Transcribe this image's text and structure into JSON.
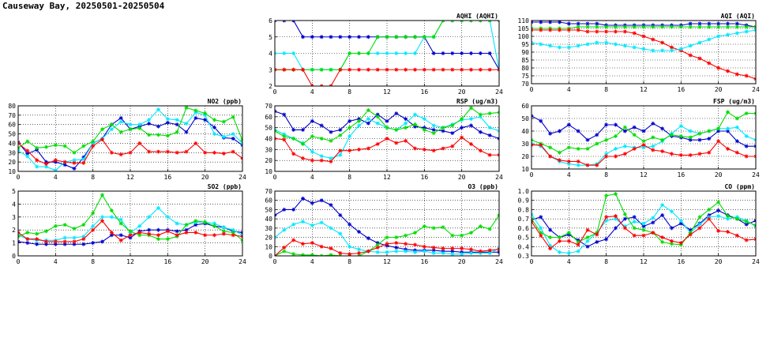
{
  "page": {
    "title": "Causeway Bay, 20250501-20250504"
  },
  "colors": {
    "red": "#ff0000",
    "green": "#00dd00",
    "blue": "#0000cc",
    "cyan": "#00e8ff",
    "grid": "#000000"
  },
  "chart_data": [
    {
      "id": "aqhi",
      "type": "line",
      "title": "AQHI (AQHI)",
      "xlim": [
        0,
        24
      ],
      "xticks": [
        "0",
        "4",
        "8",
        "12",
        "16",
        "20",
        "24"
      ],
      "ylim": [
        2,
        6
      ],
      "yticks": [
        "2",
        "3",
        "4",
        "5",
        "6"
      ],
      "series": [
        {
          "color": "blue",
          "values": [
            6,
            6,
            6,
            5,
            5,
            5,
            5,
            5,
            5,
            5,
            5,
            5,
            5,
            5,
            5,
            5,
            5,
            4,
            4,
            4,
            4,
            4,
            4,
            4,
            3
          ]
        },
        {
          "color": "cyan",
          "values": [
            4,
            4,
            4,
            3,
            3,
            3,
            3,
            3,
            4,
            4,
            4,
            4,
            4,
            4,
            4,
            4,
            5,
            5,
            6,
            6,
            6,
            6,
            6,
            6,
            3
          ]
        },
        {
          "color": "green",
          "values": [
            3,
            3,
            3,
            3,
            3,
            3,
            3,
            3,
            4,
            4,
            4,
            5,
            5,
            5,
            5,
            5,
            5,
            5,
            6,
            6,
            6,
            6,
            6,
            6,
            6
          ]
        },
        {
          "color": "red",
          "values": [
            3,
            3,
            3,
            3,
            2,
            2,
            2,
            3,
            3,
            3,
            3,
            3,
            3,
            3,
            3,
            3,
            3,
            3,
            3,
            3,
            3,
            3,
            3,
            3,
            3
          ]
        }
      ]
    },
    {
      "id": "aqi",
      "type": "line",
      "title": "AQI (AQI)",
      "xlim": [
        0,
        24
      ],
      "xticks": [
        "0",
        "4",
        "8",
        "12",
        "16",
        "20",
        "24"
      ],
      "ylim": [
        70,
        110
      ],
      "yticks": [
        "70",
        "75",
        "80",
        "85",
        "90",
        "95",
        "100",
        "105",
        "110"
      ],
      "series": [
        {
          "color": "blue",
          "values": [
            109,
            109,
            109,
            109,
            108,
            108,
            108,
            108,
            107,
            107,
            107,
            107,
            107,
            107,
            107,
            107,
            107,
            108,
            108,
            108,
            108,
            108,
            108,
            107,
            106
          ]
        },
        {
          "color": "green",
          "values": [
            105,
            105,
            105,
            105,
            105,
            106,
            106,
            106,
            106,
            106,
            106,
            106,
            106,
            106,
            106,
            106,
            106,
            106,
            106,
            106,
            106,
            106,
            106,
            106,
            106
          ]
        },
        {
          "color": "red",
          "values": [
            104,
            104,
            104,
            104,
            104,
            104,
            103,
            103,
            103,
            103,
            103,
            102,
            100,
            98,
            96,
            93,
            91,
            88,
            86,
            83,
            80,
            78,
            76,
            75,
            73
          ]
        },
        {
          "color": "cyan",
          "values": [
            96,
            95,
            94,
            93,
            93,
            94,
            95,
            96,
            96,
            95,
            94,
            93,
            92,
            91,
            91,
            91,
            92,
            94,
            96,
            98,
            100,
            101,
            102,
            103,
            104
          ]
        }
      ]
    },
    {
      "id": "no2",
      "type": "line",
      "title": "NO2 (ppb)",
      "xlim": [
        0,
        24
      ],
      "xticks": [
        "0",
        "4",
        "8",
        "12",
        "16",
        "20",
        "24"
      ],
      "ylim": [
        10,
        80
      ],
      "yticks": [
        "10",
        "20",
        "30",
        "40",
        "50",
        "60",
        "70",
        "80"
      ],
      "series": [
        {
          "color": "blue",
          "values": [
            41,
            29,
            33,
            20,
            20,
            17,
            13,
            25,
            40,
            45,
            60,
            67,
            55,
            58,
            61,
            58,
            62,
            60,
            52,
            67,
            65,
            57,
            46,
            45,
            38
          ]
        },
        {
          "color": "cyan",
          "values": [
            32,
            26,
            15,
            15,
            11,
            20,
            22,
            23,
            40,
            45,
            55,
            63,
            60,
            60,
            65,
            76,
            66,
            65,
            61,
            73,
            70,
            50,
            47,
            50,
            40
          ]
        },
        {
          "color": "green",
          "values": [
            35,
            42,
            35,
            36,
            38,
            37,
            30,
            37,
            42,
            55,
            60,
            52,
            55,
            56,
            49,
            49,
            48,
            52,
            78,
            75,
            72,
            65,
            63,
            68,
            43
          ]
        },
        {
          "color": "red",
          "values": [
            40,
            32,
            22,
            18,
            22,
            20,
            19,
            19,
            37,
            44,
            30,
            28,
            30,
            40,
            31,
            31,
            31,
            30,
            31,
            40,
            30,
            30,
            29,
            31,
            24
          ]
        }
      ]
    },
    {
      "id": "rsp",
      "type": "line",
      "title": "RSP (ug/m3)",
      "xlim": [
        0,
        24
      ],
      "xticks": [
        "0",
        "4",
        "8",
        "12",
        "16",
        "20",
        "24"
      ],
      "ylim": [
        10,
        70
      ],
      "yticks": [
        "10",
        "20",
        "30",
        "40",
        "50",
        "60",
        "70"
      ],
      "series": [
        {
          "color": "blue",
          "values": [
            65,
            62,
            48,
            48,
            56,
            52,
            46,
            48,
            56,
            58,
            54,
            62,
            56,
            63,
            58,
            51,
            50,
            48,
            47,
            45,
            50,
            52,
            46,
            43,
            40
          ]
        },
        {
          "color": "cyan",
          "values": [
            48,
            44,
            40,
            36,
            28,
            24,
            22,
            25,
            42,
            52,
            58,
            54,
            50,
            48,
            54,
            62,
            58,
            52,
            50,
            53,
            57,
            58,
            60,
            50,
            47
          ]
        },
        {
          "color": "green",
          "values": [
            47,
            42,
            40,
            35,
            42,
            40,
            38,
            43,
            50,
            56,
            66,
            60,
            50,
            48,
            50,
            53,
            48,
            45,
            50,
            52,
            58,
            68,
            62,
            63,
            64
          ]
        },
        {
          "color": "red",
          "values": [
            40,
            39,
            26,
            22,
            20,
            20,
            19,
            29,
            29,
            30,
            31,
            35,
            40,
            36,
            38,
            31,
            30,
            29,
            31,
            33,
            41,
            35,
            29,
            25,
            25
          ]
        }
      ]
    },
    {
      "id": "fsp",
      "type": "line",
      "title": "FSP (ug/m3)",
      "xlim": [
        0,
        24
      ],
      "xticks": [
        "0",
        "4",
        "8",
        "12",
        "16",
        "20",
        "24"
      ],
      "ylim": [
        10,
        60
      ],
      "yticks": [
        "10",
        "20",
        "30",
        "40",
        "50",
        "60"
      ],
      "series": [
        {
          "color": "blue",
          "values": [
            52,
            48,
            38,
            40,
            45,
            40,
            33,
            37,
            45,
            45,
            40,
            43,
            40,
            46,
            42,
            36,
            35,
            33,
            33,
            34,
            40,
            40,
            32,
            28,
            28
          ]
        },
        {
          "color": "cyan",
          "values": [
            30,
            28,
            20,
            16,
            14,
            13,
            13,
            14,
            22,
            26,
            28,
            27,
            27,
            28,
            32,
            38,
            44,
            40,
            38,
            40,
            42,
            42,
            43,
            36,
            33
          ]
        },
        {
          "color": "green",
          "values": [
            33,
            30,
            27,
            23,
            27,
            26,
            26,
            30,
            33,
            36,
            43,
            37,
            32,
            35,
            33,
            37,
            36,
            35,
            38,
            40,
            42,
            55,
            50,
            54,
            54
          ]
        },
        {
          "color": "red",
          "values": [
            29,
            29,
            20,
            17,
            16,
            16,
            13,
            13,
            20,
            20,
            22,
            26,
            29,
            25,
            24,
            22,
            21,
            21,
            22,
            23,
            32,
            26,
            23,
            20,
            20
          ]
        }
      ]
    },
    {
      "id": "so2",
      "type": "line",
      "title": "SO2 (ppb)",
      "xlim": [
        0,
        24
      ],
      "xticks": [
        "0",
        "4",
        "8",
        "12",
        "16",
        "20",
        "24"
      ],
      "ylim": [
        0,
        5
      ],
      "yticks": [
        "0",
        "1",
        "2",
        "3",
        "4",
        "5"
      ],
      "series": [
        {
          "color": "blue",
          "values": [
            1.1,
            1.0,
            0.9,
            0.9,
            0.9,
            0.9,
            0.9,
            0.9,
            1.0,
            1.1,
            1.6,
            1.6,
            1.4,
            1.9,
            2.0,
            2.0,
            2.0,
            1.9,
            2.0,
            2.4,
            2.5,
            2.3,
            2.2,
            1.9,
            1.8
          ]
        },
        {
          "color": "cyan",
          "values": [
            1.6,
            1.3,
            1.2,
            1.2,
            1.2,
            1.4,
            1.4,
            1.5,
            2.3,
            3.0,
            3.0,
            2.8,
            1.8,
            2.3,
            3.0,
            3.7,
            3.0,
            2.5,
            2.4,
            2.6,
            2.6,
            2.5,
            2.2,
            2.0,
            1.6
          ]
        },
        {
          "color": "green",
          "values": [
            1.5,
            1.8,
            1.7,
            1.9,
            2.3,
            2.4,
            2.1,
            2.4,
            3.3,
            4.7,
            3.5,
            2.5,
            1.9,
            1.6,
            1.6,
            1.3,
            1.3,
            1.5,
            2.4,
            2.7,
            2.6,
            2.3,
            1.9,
            1.8,
            1.2
          ]
        },
        {
          "color": "red",
          "values": [
            1.8,
            1.3,
            1.3,
            1.1,
            1.1,
            1.1,
            1.1,
            1.3,
            2.0,
            2.7,
            1.8,
            1.2,
            1.6,
            1.8,
            1.7,
            1.6,
            1.9,
            1.6,
            1.8,
            1.8,
            1.6,
            1.6,
            1.7,
            1.6,
            1.5
          ]
        }
      ]
    },
    {
      "id": "o3",
      "type": "line",
      "title": "O3 (ppb)",
      "xlim": [
        0,
        24
      ],
      "xticks": [
        "0",
        "4",
        "8",
        "12",
        "16",
        "20",
        "24"
      ],
      "ylim": [
        0,
        70
      ],
      "yticks": [
        "0",
        "10",
        "20",
        "30",
        "40",
        "50",
        "60",
        "70"
      ],
      "series": [
        {
          "color": "blue",
          "values": [
            44,
            50,
            50,
            62,
            57,
            60,
            55,
            44,
            34,
            26,
            19,
            14,
            11,
            9,
            7,
            6,
            6,
            6,
            5,
            5,
            4,
            4,
            4,
            4,
            4
          ]
        },
        {
          "color": "cyan",
          "values": [
            20,
            28,
            34,
            37,
            33,
            36,
            30,
            24,
            10,
            7,
            5,
            4,
            4,
            5,
            5,
            4,
            5,
            3,
            3,
            2,
            2,
            3,
            3,
            3,
            8
          ]
        },
        {
          "color": "green",
          "values": [
            0,
            5,
            2,
            1,
            1,
            0,
            1,
            0,
            0,
            0,
            5,
            12,
            20,
            20,
            22,
            25,
            32,
            30,
            31,
            22,
            22,
            25,
            32,
            29,
            44
          ]
        },
        {
          "color": "red",
          "values": [
            0,
            9,
            17,
            13,
            14,
            10,
            8,
            3,
            2,
            3,
            5,
            9,
            13,
            14,
            13,
            12,
            10,
            9,
            8,
            8,
            8,
            7,
            5,
            6,
            7
          ]
        }
      ]
    },
    {
      "id": "co",
      "type": "line",
      "title": "CO (ppm)",
      "xlim": [
        0,
        24
      ],
      "xticks": [
        "0",
        "4",
        "8",
        "12",
        "16",
        "20",
        "24"
      ],
      "ylim": [
        0.3,
        1.0
      ],
      "yticks": [
        "0.3",
        "0.4",
        "0.5",
        "0.6",
        "0.7",
        "0.8",
        "0.9",
        "1.0"
      ],
      "series": [
        {
          "color": "blue",
          "values": [
            0.69,
            0.72,
            0.58,
            0.5,
            0.53,
            0.47,
            0.4,
            0.45,
            0.48,
            0.6,
            0.7,
            0.72,
            0.62,
            0.66,
            0.74,
            0.6,
            0.65,
            0.58,
            0.65,
            0.74,
            0.79,
            0.74,
            0.7,
            0.64,
            0.68
          ]
        },
        {
          "color": "cyan",
          "values": [
            0.75,
            0.6,
            0.41,
            0.34,
            0.33,
            0.35,
            0.46,
            0.55,
            0.68,
            0.7,
            0.62,
            0.67,
            0.65,
            0.71,
            0.85,
            0.78,
            0.68,
            0.55,
            0.64,
            0.72,
            0.73,
            0.7,
            0.72,
            0.68,
            0.62
          ]
        },
        {
          "color": "green",
          "values": [
            0.7,
            0.55,
            0.5,
            0.5,
            0.55,
            0.45,
            0.5,
            0.55,
            0.95,
            0.97,
            0.75,
            0.6,
            0.58,
            0.55,
            0.45,
            0.43,
            0.42,
            0.55,
            0.72,
            0.8,
            0.88,
            0.73,
            0.7,
            0.67,
            0.63
          ]
        },
        {
          "color": "red",
          "values": [
            0.67,
            0.52,
            0.38,
            0.46,
            0.46,
            0.42,
            0.58,
            0.53,
            0.72,
            0.73,
            0.6,
            0.52,
            0.52,
            0.55,
            0.5,
            0.46,
            0.44,
            0.53,
            0.6,
            0.7,
            0.57,
            0.56,
            0.52,
            0.47,
            0.48
          ]
        }
      ]
    }
  ]
}
